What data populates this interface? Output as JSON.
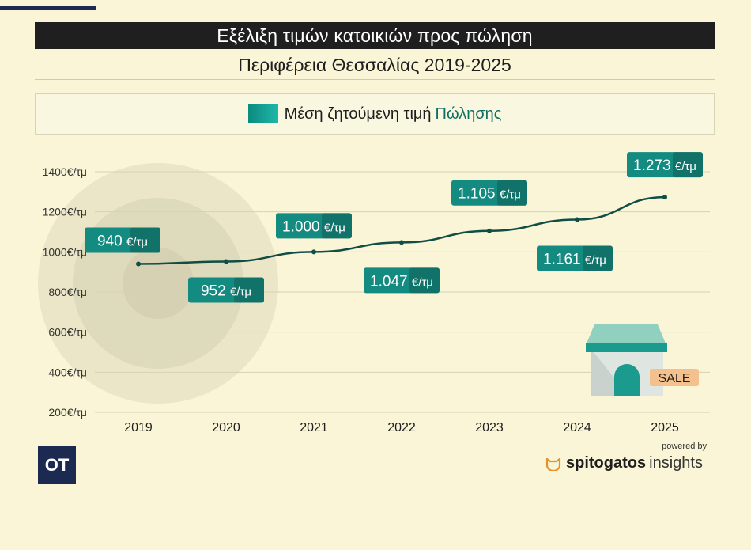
{
  "header": {
    "title": "Εξέλιξη τιμών κατοικιών προς πώληση",
    "subtitle": "Περιφέρεια Θεσσαλίας 2019-2025"
  },
  "legend": {
    "label": "Μέση ζητούμενη τιμή",
    "accent": "Πώλησης"
  },
  "chart_data": {
    "type": "line",
    "x": [
      "2019",
      "2020",
      "2021",
      "2022",
      "2023",
      "2024",
      "2025"
    ],
    "series": [
      {
        "values": [
          940,
          952,
          1000,
          1047,
          1105,
          1161,
          1273
        ],
        "labels": [
          "940",
          "952",
          "1.000",
          "1.047",
          "1.105",
          "1.161",
          "1.273"
        ]
      }
    ],
    "unit": "€/τμ",
    "yticks": [
      "1400€/τμ",
      "1200€/τμ",
      "1000€/τμ",
      "800€/τμ",
      "600€/τμ",
      "400€/τμ",
      "200€/τμ"
    ],
    "ytick_values": [
      1400,
      1200,
      1000,
      800,
      600,
      400,
      200
    ],
    "ylim": [
      200,
      1400
    ],
    "grid": true,
    "line_color": "#0f4d45",
    "label_color": "#138b80"
  },
  "decor": {
    "sale_text": "SALE"
  },
  "footer": {
    "ot_logo": "OT",
    "powered_by": "powered by",
    "brand_bold": "spitogatos",
    "brand_light": "insights"
  }
}
